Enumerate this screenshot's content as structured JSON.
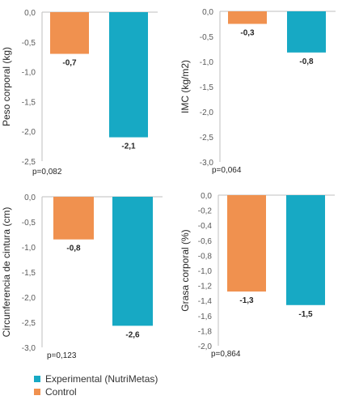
{
  "colors": {
    "experimental": "#17A9C4",
    "control": "#F0914F",
    "axis": "#BFBFBF"
  },
  "legend": [
    {
      "label": "Experimental (NutriMetas)",
      "color": "#17A9C4"
    },
    {
      "label": "Control",
      "color": "#F0914F"
    }
  ],
  "chart_data": [
    {
      "type": "bar",
      "ylabel": "Peso corporal (kg)",
      "ylim": [
        -2.5,
        0
      ],
      "yticks": [
        "0,0",
        "-0,5",
        "-1,0",
        "-1,5",
        "-2,0",
        "-2,5"
      ],
      "series": [
        {
          "name": "Control",
          "value": -0.7,
          "label": "-0,7",
          "color": "#F0914F"
        },
        {
          "name": "Experimental (NutriMetas)",
          "value": -2.1,
          "label": "-2,1",
          "color": "#17A9C4"
        }
      ],
      "pvalue": "p=0,082"
    },
    {
      "type": "bar",
      "ylabel": "IMC (kg/m2)",
      "ylim": [
        -3.0,
        0
      ],
      "yticks": [
        "0,0",
        "-0,5",
        "-1,0",
        "-1,5",
        "-2,0",
        "-2,5",
        "-3,0"
      ],
      "series": [
        {
          "name": "Control",
          "value": -0.25,
          "label": "-0,3",
          "color": "#F0914F"
        },
        {
          "name": "Experimental (NutriMetas)",
          "value": -0.82,
          "label": "-0,8",
          "color": "#17A9C4"
        }
      ],
      "pvalue": "p=0,064"
    },
    {
      "type": "bar",
      "ylabel": "Circunferencia de cintura (cm)",
      "ylim": [
        -3.0,
        0
      ],
      "yticks": [
        "0,0",
        "-0,5",
        "-1,0",
        "-1,5",
        "-2,0",
        "-2,5",
        "-3,0"
      ],
      "series": [
        {
          "name": "Control",
          "value": -0.85,
          "label": "-0,8",
          "color": "#F0914F"
        },
        {
          "name": "Experimental (NutriMetas)",
          "value": -2.57,
          "label": "-2,6",
          "color": "#17A9C4"
        }
      ],
      "pvalue": "p=0,123"
    },
    {
      "type": "bar",
      "ylabel": "Grasa corporal (%)",
      "ylim": [
        -2.0,
        0
      ],
      "yticks": [
        "0,0",
        "-0,2",
        "-0,4",
        "-0,6",
        "-0,8",
        "-1,0",
        "-1,2",
        "-1,4",
        "-1,6",
        "-1,8",
        "-2,0"
      ],
      "series": [
        {
          "name": "Control",
          "value": -1.28,
          "label": "-1,3",
          "color": "#F0914F"
        },
        {
          "name": "Experimental (NutriMetas)",
          "value": -1.46,
          "label": "-1,5",
          "color": "#17A9C4"
        }
      ],
      "pvalue": "p=0,864"
    }
  ]
}
